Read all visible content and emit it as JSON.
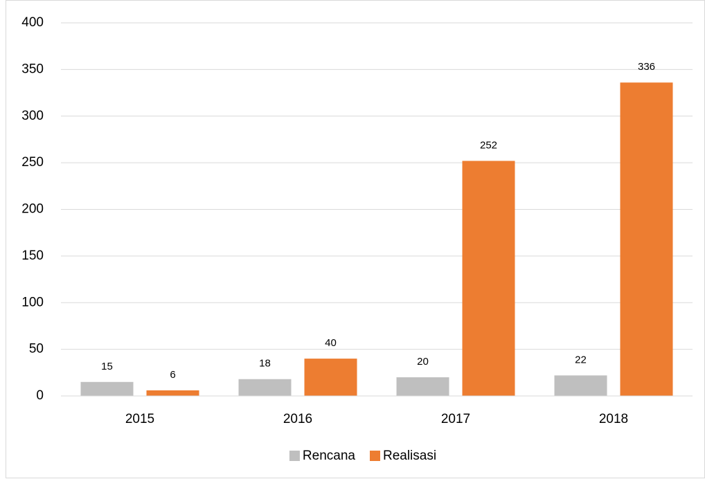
{
  "chart_data": {
    "type": "bar",
    "categories": [
      "2015",
      "2016",
      "2017",
      "2018"
    ],
    "series": [
      {
        "name": "Rencana",
        "color": "#bfbfbf",
        "values": [
          15,
          18,
          20,
          22
        ]
      },
      {
        "name": "Realisasi",
        "color": "#ed7d31",
        "values": [
          6,
          40,
          252,
          336
        ]
      }
    ],
    "ylim": [
      0,
      400
    ],
    "yticks": [
      0,
      50,
      100,
      150,
      200,
      250,
      300,
      350,
      400
    ],
    "grid": true,
    "legend": "bottom"
  }
}
